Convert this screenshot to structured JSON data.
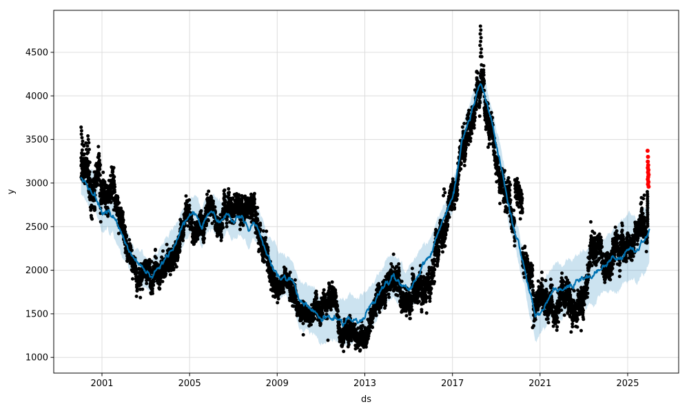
{
  "figure": {
    "background": "#ffffff"
  },
  "chart_data": {
    "type": "scatter",
    "subtype": "prophet-forecast-with-uncertainty-band-and-anomalies",
    "title": "",
    "xlabel": "ds",
    "ylabel": "y",
    "x_ticks": [
      2001,
      2005,
      2009,
      2013,
      2017,
      2021,
      2025
    ],
    "y_ticks": [
      1000,
      1500,
      2000,
      2500,
      3000,
      3500,
      4000,
      4500
    ],
    "xlim": [
      1998.8,
      2027.33
    ],
    "ylim": [
      818,
      4982
    ],
    "grid": true,
    "legend": "none",
    "colors": {
      "actuals": "#000000",
      "forecast_line": "#0072B2",
      "uncertainty_band": "rgba(0,114,178,0.2)",
      "anomalies": "#ff0000",
      "grid": "#dcdcdc",
      "axis": "#000000",
      "background": "#ffffff"
    },
    "forecast": {
      "note": "columns: [year_decimal, yhat, yhat_lower, yhat_upper]",
      "points": [
        [
          2000.0,
          3080,
          2890,
          3270
        ],
        [
          2000.35,
          2940,
          2750,
          3130
        ],
        [
          2000.7,
          2870,
          2680,
          3060
        ],
        [
          2001.0,
          2620,
          2430,
          2810
        ],
        [
          2001.25,
          2690,
          2500,
          2880
        ],
        [
          2001.5,
          2610,
          2420,
          2800
        ],
        [
          2001.8,
          2440,
          2250,
          2630
        ],
        [
          2002.1,
          2290,
          2100,
          2480
        ],
        [
          2002.4,
          2160,
          1970,
          2350
        ],
        [
          2002.7,
          2060,
          1870,
          2250
        ],
        [
          2003.0,
          1970,
          1780,
          2160
        ],
        [
          2003.25,
          1905,
          1715,
          2095
        ],
        [
          2003.5,
          1995,
          1805,
          2185
        ],
        [
          2003.8,
          2110,
          1920,
          2300
        ],
        [
          2004.1,
          2200,
          1995,
          2405
        ],
        [
          2004.4,
          2340,
          2135,
          2545
        ],
        [
          2004.7,
          2520,
          2315,
          2725
        ],
        [
          2005.0,
          2610,
          2405,
          2815
        ],
        [
          2005.3,
          2640,
          2435,
          2845
        ],
        [
          2005.55,
          2480,
          2275,
          2685
        ],
        [
          2005.8,
          2640,
          2435,
          2845
        ],
        [
          2006.1,
          2650,
          2445,
          2855
        ],
        [
          2006.4,
          2560,
          2355,
          2765
        ],
        [
          2006.7,
          2630,
          2425,
          2835
        ],
        [
          2007.0,
          2570,
          2365,
          2775
        ],
        [
          2007.35,
          2630,
          2425,
          2835
        ],
        [
          2007.7,
          2480,
          2275,
          2685
        ],
        [
          2007.95,
          2560,
          2355,
          2765
        ],
        [
          2008.2,
          2430,
          2225,
          2635
        ],
        [
          2008.5,
          2230,
          2025,
          2435
        ],
        [
          2008.8,
          2060,
          1855,
          2265
        ],
        [
          2009.0,
          1960,
          1735,
          2185
        ],
        [
          2009.35,
          1930,
          1705,
          2155
        ],
        [
          2009.7,
          1860,
          1635,
          2085
        ],
        [
          2010.0,
          1660,
          1405,
          1915
        ],
        [
          2010.35,
          1560,
          1305,
          1815
        ],
        [
          2010.7,
          1505,
          1250,
          1760
        ],
        [
          2011.05,
          1425,
          1170,
          1680
        ],
        [
          2011.35,
          1485,
          1230,
          1740
        ],
        [
          2011.65,
          1455,
          1200,
          1710
        ],
        [
          2012.0,
          1405,
          1150,
          1660
        ],
        [
          2012.35,
          1455,
          1200,
          1710
        ],
        [
          2012.7,
          1425,
          1170,
          1680
        ],
        [
          2013.0,
          1480,
          1225,
          1735
        ],
        [
          2013.35,
          1605,
          1350,
          1860
        ],
        [
          2013.7,
          1760,
          1520,
          2000
        ],
        [
          2014.0,
          1880,
          1640,
          2120
        ],
        [
          2014.3,
          1905,
          1665,
          2145
        ],
        [
          2014.65,
          1830,
          1590,
          2070
        ],
        [
          2015.0,
          1785,
          1545,
          2025
        ],
        [
          2015.35,
          1905,
          1665,
          2145
        ],
        [
          2015.7,
          2090,
          1895,
          2285
        ],
        [
          2016.0,
          2200,
          2005,
          2395
        ],
        [
          2016.25,
          2360,
          2165,
          2555
        ],
        [
          2016.5,
          2520,
          2325,
          2715
        ],
        [
          2016.75,
          2650,
          2455,
          2845
        ],
        [
          2017.0,
          2850,
          2692,
          3008
        ],
        [
          2017.2,
          3100,
          2942,
          3258
        ],
        [
          2017.45,
          3530,
          3372,
          3688
        ],
        [
          2017.7,
          3680,
          3522,
          3838
        ],
        [
          2018.0,
          3950,
          3792,
          4108
        ],
        [
          2018.28,
          4140,
          3982,
          4298
        ],
        [
          2018.55,
          3960,
          3802,
          4118
        ],
        [
          2018.8,
          3720,
          3562,
          3878
        ],
        [
          2019.0,
          3420,
          3220,
          3620
        ],
        [
          2019.35,
          3020,
          2820,
          3220
        ],
        [
          2019.6,
          2700,
          2500,
          2900
        ],
        [
          2019.8,
          2480,
          2280,
          2680
        ],
        [
          2020.0,
          2310,
          2110,
          2510
        ],
        [
          2020.3,
          1990,
          1790,
          2190
        ],
        [
          2020.55,
          1720,
          1465,
          1975
        ],
        [
          2020.78,
          1460,
          1205,
          1715
        ],
        [
          2021.0,
          1530,
          1275,
          1785
        ],
        [
          2021.35,
          1660,
          1405,
          1915
        ],
        [
          2021.7,
          1785,
          1495,
          2075
        ],
        [
          2022.0,
          1730,
          1440,
          2020
        ],
        [
          2022.35,
          1825,
          1535,
          2115
        ],
        [
          2022.7,
          1875,
          1585,
          2165
        ],
        [
          2023.0,
          1880,
          1550,
          2210
        ],
        [
          2023.35,
          1950,
          1620,
          2280
        ],
        [
          2023.7,
          2005,
          1675,
          2335
        ],
        [
          2024.0,
          2065,
          1735,
          2395
        ],
        [
          2024.3,
          2150,
          1820,
          2480
        ],
        [
          2024.6,
          2120,
          1750,
          2540
        ],
        [
          2024.9,
          2210,
          1840,
          2630
        ],
        [
          2025.15,
          2250,
          1880,
          2670
        ],
        [
          2025.4,
          2215,
          1845,
          2635
        ],
        [
          2025.62,
          2320,
          1950,
          2740
        ],
        [
          2025.77,
          2340,
          1970,
          2760
        ],
        [
          2025.86,
          2350,
          1980,
          2750
        ],
        [
          2025.92,
          2380,
          2020,
          2780
        ],
        [
          2026.0,
          2460,
          2100,
          2830
        ]
      ]
    },
    "scatter_model": {
      "note": "black daily actuals approximated as trend + AR(1) noise; eras: [t_start, t_end, scale, bias]",
      "t_start": 2000.05,
      "t_end": 2025.91,
      "step_years": 0.01923,
      "points_per_step": 5,
      "ar_phi": 0.965,
      "seed": 7,
      "eras": [
        [
          2000.0,
          2000.45,
          250,
          200
        ],
        [
          2000.45,
          2001.6,
          250,
          -30
        ],
        [
          2001.6,
          2008.6,
          165,
          0
        ],
        [
          2008.6,
          2013.5,
          145,
          0
        ],
        [
          2013.5,
          2013.95,
          165,
          20
        ],
        [
          2013.95,
          2014.55,
          170,
          170
        ],
        [
          2014.55,
          2014.75,
          170,
          0
        ],
        [
          2014.75,
          2015.15,
          170,
          -150
        ],
        [
          2015.15,
          2018.1,
          190,
          0
        ],
        [
          2018.1,
          2018.45,
          200,
          220
        ],
        [
          2018.45,
          2019.85,
          185,
          0
        ],
        [
          2019.85,
          2020.2,
          150,
          550
        ],
        [
          2020.2,
          2020.95,
          160,
          -60
        ],
        [
          2020.95,
          2021.55,
          200,
          -60
        ],
        [
          2021.55,
          2023.3,
          195,
          -170
        ],
        [
          2023.3,
          2024.9,
          190,
          60
        ],
        [
          2024.9,
          2025.62,
          165,
          40
        ],
        [
          2025.62,
          2025.91,
          160,
          170
        ]
      ]
    },
    "actuals_extra": [
      [
        2000.05,
        3640
      ],
      [
        2000.07,
        3600
      ],
      [
        2000.06,
        3560
      ],
      [
        2000.09,
        3520
      ],
      [
        2000.12,
        3480
      ],
      [
        2000.1,
        3445
      ],
      [
        2000.36,
        3540
      ],
      [
        2000.38,
        3500
      ],
      [
        2000.4,
        3462
      ],
      [
        2000.34,
        3425
      ],
      [
        2000.42,
        3385
      ],
      [
        2000.37,
        3350
      ],
      [
        2016.59,
        2855
      ],
      [
        2016.62,
        2930
      ],
      [
        2016.66,
        2890
      ],
      [
        2018.28,
        4800
      ],
      [
        2018.3,
        4755
      ],
      [
        2018.27,
        4712
      ],
      [
        2018.31,
        4668
      ],
      [
        2018.29,
        4625
      ],
      [
        2018.26,
        4580
      ],
      [
        2018.32,
        4538
      ],
      [
        2018.3,
        4495
      ],
      [
        2018.28,
        4452
      ],
      [
        2019.96,
        3050
      ],
      [
        2019.99,
        3005
      ],
      [
        2025.58,
        2600
      ],
      [
        2025.6,
        2760
      ],
      [
        2025.65,
        2710
      ],
      [
        2025.66,
        2560
      ],
      [
        2025.7,
        2650
      ],
      [
        2025.72,
        2820
      ],
      [
        2025.76,
        2860
      ],
      [
        2025.9,
        2900
      ],
      [
        2025.905,
        2872
      ],
      [
        2025.91,
        2845
      ],
      [
        2025.902,
        2818
      ],
      [
        2025.908,
        2792
      ],
      [
        2025.912,
        2766
      ],
      [
        2025.905,
        2740
      ],
      [
        2025.91,
        2714
      ],
      [
        2025.903,
        2688
      ],
      [
        2025.909,
        2662
      ],
      [
        2025.913,
        2636
      ],
      [
        2025.906,
        2610
      ],
      [
        2025.911,
        2584
      ],
      [
        2025.904,
        2558
      ],
      [
        2025.91,
        2532
      ],
      [
        2025.915,
        2506
      ],
      [
        2011.32,
        1195
      ],
      [
        2012.58,
        1230
      ],
      [
        2012.8,
        1265
      ],
      [
        2020.66,
        1340
      ],
      [
        2022.42,
        1290
      ],
      [
        2022.88,
        1305
      ],
      [
        2021.77,
        1310
      ]
    ],
    "anomalies_red": [
      [
        2025.91,
        3370
      ],
      [
        2025.93,
        3300
      ],
      [
        2025.92,
        3245
      ],
      [
        2025.94,
        3205
      ],
      [
        2025.92,
        3175
      ],
      [
        2025.95,
        3150
      ],
      [
        2025.93,
        3122
      ],
      [
        2025.96,
        3096
      ],
      [
        2025.94,
        3070
      ],
      [
        2025.92,
        3042
      ],
      [
        2025.95,
        3012
      ],
      [
        2025.93,
        2985
      ],
      [
        2025.96,
        2958
      ]
    ]
  }
}
